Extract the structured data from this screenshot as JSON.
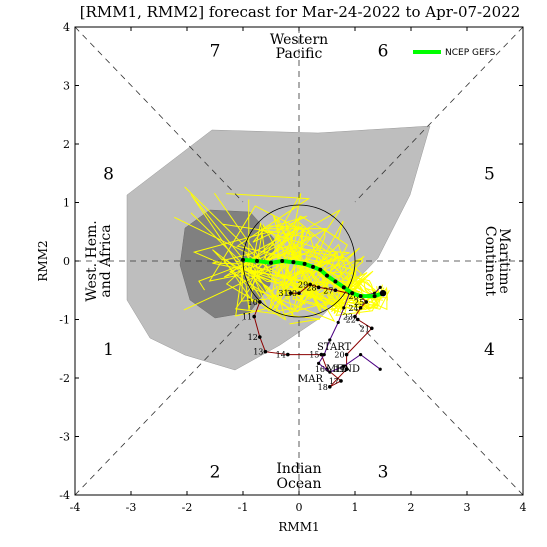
{
  "chart_data": {
    "type": "line",
    "title": "[RMM1, RMM2] forecast for Mar-24-2022 to Apr-07-2022",
    "xlabel": "RMM1",
    "ylabel": "RMM2",
    "xlim": [
      -4,
      4
    ],
    "ylim": [
      -4,
      4
    ],
    "xticks": [
      "-4",
      "-3",
      "-2",
      "-1",
      "0",
      "1",
      "2",
      "3",
      "4"
    ],
    "yticks": [
      "-4",
      "-3",
      "-2",
      "-1",
      "0",
      "1",
      "2",
      "3",
      "4"
    ],
    "grid": false,
    "legend_placement": "top-right",
    "phases": [
      {
        "label": "1",
        "x": -3.4,
        "y": -1.5
      },
      {
        "label": "2",
        "x": -1.5,
        "y": -3.6
      },
      {
        "label": "3",
        "x": 1.5,
        "y": -3.6
      },
      {
        "label": "4",
        "x": 3.4,
        "y": -1.5
      },
      {
        "label": "5",
        "x": 3.4,
        "y": 1.5
      },
      {
        "label": "6",
        "x": 1.5,
        "y": 3.6
      },
      {
        "label": "7",
        "x": -1.5,
        "y": 3.6
      },
      {
        "label": "8",
        "x": -3.4,
        "y": 1.5
      }
    ],
    "regions": {
      "western_pacific": [
        "Western",
        "Pacific"
      ],
      "indian_ocean": [
        "Indian",
        "Ocean"
      ],
      "maritime_continent": [
        "Maritime",
        "Continent"
      ],
      "west_hem_africa": [
        "West. Hem.",
        "and Africa"
      ]
    },
    "series": [
      {
        "name": "NCEP GEFS",
        "color": "#00ff00",
        "x": [
          1.5,
          1.35,
          1.1,
          0.95,
          0.8,
          0.65,
          0.5,
          0.38,
          0.25,
          0.1,
          -0.1,
          -0.3,
          -0.5,
          -0.75,
          -1.0
        ],
        "y": [
          -0.55,
          -0.6,
          -0.6,
          -0.55,
          -0.45,
          -0.35,
          -0.25,
          -0.15,
          -0.1,
          -0.05,
          -0.02,
          0.0,
          -0.03,
          0.0,
          0.02
        ]
      }
    ],
    "observed": {
      "days": [
        "10",
        "11",
        "12",
        "13",
        "14",
        "15",
        "16",
        "17",
        "18",
        "19",
        "20",
        "21",
        "22",
        "23",
        "24",
        "25",
        "26",
        "27",
        "28",
        "29",
        "30",
        "31"
      ],
      "x": [
        -0.7,
        -0.8,
        -0.7,
        -0.6,
        -0.2,
        0.4,
        0.5,
        0.75,
        0.55,
        0.85,
        0.85,
        1.3,
        1.05,
        1.0,
        1.1,
        1.2,
        1.1,
        0.65,
        0.35,
        0.2,
        0.0,
        -0.15
      ],
      "y": [
        -0.7,
        -0.95,
        -1.3,
        -1.55,
        -1.6,
        -1.6,
        -1.85,
        -2.05,
        -2.15,
        -1.85,
        -1.6,
        -1.15,
        -1.0,
        -0.95,
        -0.8,
        -0.7,
        -0.6,
        -0.5,
        -0.45,
        -0.4,
        -0.55,
        -0.55
      ],
      "color": "#8b0000"
    },
    "forecast_tracks": {
      "color": "#4b0082",
      "x": [
        1.45,
        1.35,
        1.1,
        0.9,
        0.8,
        0.7,
        0.55,
        0.45,
        0.35,
        0.55,
        0.8,
        1.1,
        1.45
      ],
      "y": [
        -0.45,
        -0.55,
        -0.6,
        -0.55,
        -0.8,
        -1.05,
        -1.35,
        -1.6,
        -1.75,
        -1.9,
        -1.8,
        -1.6,
        -1.85
      ]
    },
    "end_labels": {
      "start": "START",
      "mid": "MID",
      "end": "END",
      "mar": "MAR"
    },
    "legend": {
      "label": "NCEP GEFS"
    }
  },
  "colors": {
    "spread_outer": "#bebebe",
    "spread_inner": "#808080",
    "ensemble": "#ffff00",
    "observed": "#8b0000",
    "forecast_track": "#4b0082",
    "mean": "#00ff00",
    "axis": "#000000"
  }
}
